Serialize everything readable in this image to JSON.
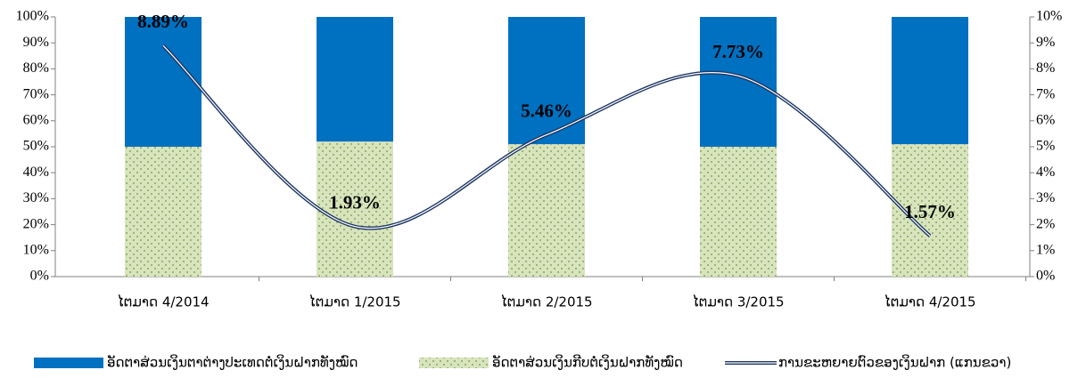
{
  "chart_data": {
    "type": "bar_line",
    "categories": [
      "ໄຕມາດ 4/2014",
      "ໄຕມາດ 1/2015",
      "ໄຕມາດ 2/2015",
      "ໄຕມາດ 3/2015",
      "ໄຕມາດ 4/2015"
    ],
    "series": [
      {
        "name": "ອັດຕາສ່ວນເງິນຕາຕ່າງປະເທດຕໍ່ເງິນຝາກທັງໝົດ",
        "color": "#0070c0",
        "type": "bar",
        "values": [
          50,
          48,
          49,
          50,
          49
        ]
      },
      {
        "name": "ອັດຕາສ່ວນເງິນກີບຕໍ່ເງິນຝາກທັງໝົດ",
        "color": "#d7e4bd",
        "type": "bar",
        "values": [
          50,
          52,
          51,
          50,
          51
        ]
      },
      {
        "name": "ການຂະຫຍາຍຕົວຂອງເງິນຝາກ (ແກນຂວາ)",
        "color": "#1f3864",
        "type": "line",
        "axis": "y2",
        "values": [
          8.89,
          1.93,
          5.46,
          7.73,
          1.57
        ],
        "value_labels": [
          "8.89%",
          "1.93%",
          "5.46%",
          "7.73%",
          "1.57%"
        ]
      }
    ],
    "ylim": [
      0,
      100
    ],
    "yticks": [
      {
        "value": 0,
        "label": "0%"
      },
      {
        "value": 10,
        "label": "10%"
      },
      {
        "value": 20,
        "label": "20%"
      },
      {
        "value": 30,
        "label": "30%"
      },
      {
        "value": 40,
        "label": "40%"
      },
      {
        "value": 50,
        "label": "50%"
      },
      {
        "value": 60,
        "label": "60%"
      },
      {
        "value": 70,
        "label": "70%"
      },
      {
        "value": 80,
        "label": "80%"
      },
      {
        "value": 90,
        "label": "90%"
      },
      {
        "value": 100,
        "label": "100%"
      }
    ],
    "y2lim": [
      0,
      10
    ],
    "y2ticks": [
      {
        "value": 0,
        "label": "0%"
      },
      {
        "value": 1,
        "label": "1%"
      },
      {
        "value": 2,
        "label": "2%"
      },
      {
        "value": 3,
        "label": "3%"
      },
      {
        "value": 4,
        "label": "4%"
      },
      {
        "value": 5,
        "label": "5%"
      },
      {
        "value": 6,
        "label": "6%"
      },
      {
        "value": 7,
        "label": "7%"
      },
      {
        "value": 8,
        "label": "8%"
      },
      {
        "value": 9,
        "label": "9%"
      },
      {
        "value": 10,
        "label": "10%"
      }
    ],
    "legend": "bottom"
  }
}
